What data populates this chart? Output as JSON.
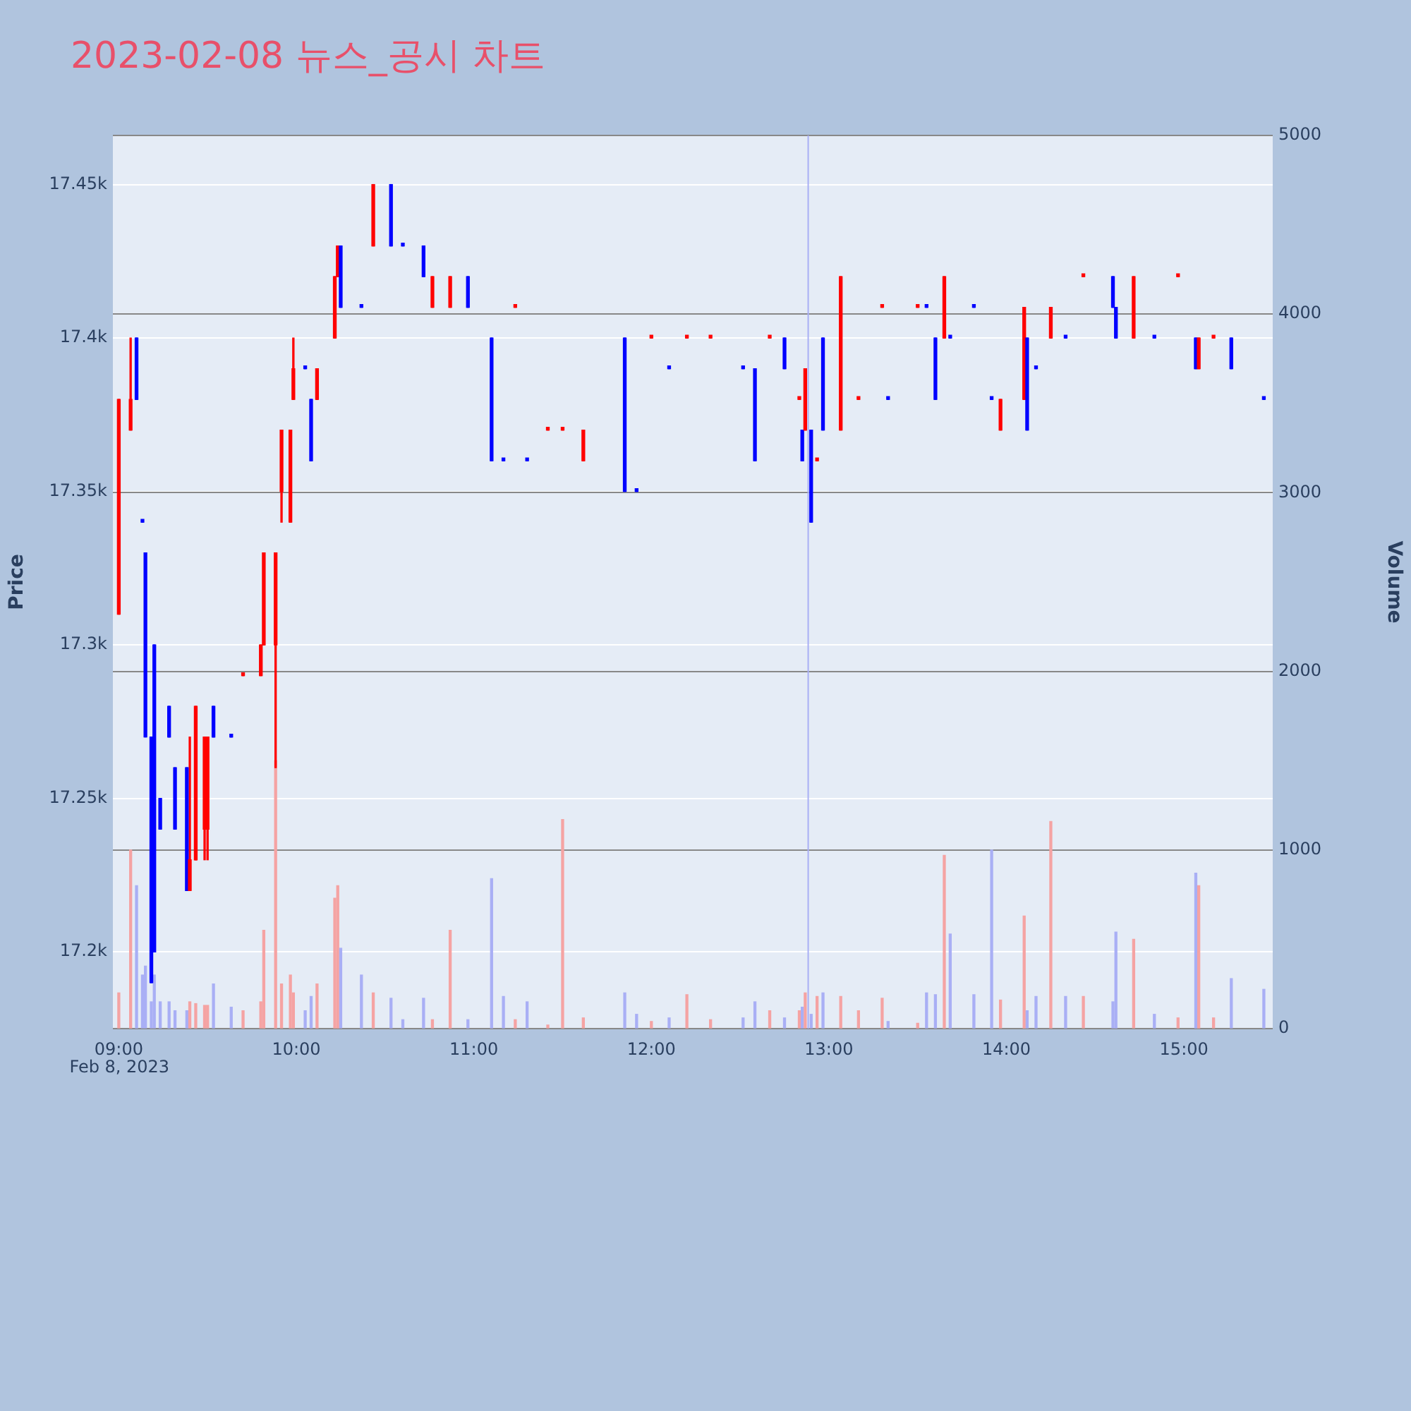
{
  "chart_data": {
    "type": "candlestick",
    "title": "2023-02-08 뉴스_공시 차트",
    "ylabel": "Price",
    "y2label": "Volume",
    "annotations": [
      "Feb 8, 2023"
    ],
    "x": [
      "2023-02-08T09:00",
      "2023-02-08T09:04",
      "2023-02-08T09:06",
      "2023-02-08T09:08",
      "2023-02-08T09:09",
      "2023-02-08T09:11",
      "2023-02-08T09:12",
      "2023-02-08T09:14",
      "2023-02-08T09:17",
      "2023-02-08T09:19",
      "2023-02-08T09:23",
      "2023-02-08T09:24",
      "2023-02-08T09:26",
      "2023-02-08T09:29",
      "2023-02-08T09:30",
      "2023-02-08T09:32",
      "2023-02-08T09:38",
      "2023-02-08T09:42",
      "2023-02-08T09:48",
      "2023-02-08T09:49",
      "2023-02-08T09:53",
      "2023-02-08T09:55",
      "2023-02-08T09:58",
      "2023-02-08T09:59",
      "2023-02-08T10:03",
      "2023-02-08T10:05",
      "2023-02-08T10:07",
      "2023-02-08T10:13",
      "2023-02-08T10:14",
      "2023-02-08T10:15",
      "2023-02-08T10:22",
      "2023-02-08T10:26",
      "2023-02-08T10:32",
      "2023-02-08T10:36",
      "2023-02-08T10:43",
      "2023-02-08T10:46",
      "2023-02-08T10:52",
      "2023-02-08T10:58",
      "2023-02-08T11:06",
      "2023-02-08T11:10",
      "2023-02-08T11:14",
      "2023-02-08T11:18",
      "2023-02-08T11:25",
      "2023-02-08T11:30",
      "2023-02-08T11:37",
      "2023-02-08T11:51",
      "2023-02-08T11:55",
      "2023-02-08T12:00",
      "2023-02-08T12:06",
      "2023-02-08T12:12",
      "2023-02-08T12:20",
      "2023-02-08T12:31",
      "2023-02-08T12:35",
      "2023-02-08T12:40",
      "2023-02-08T12:45",
      "2023-02-08T12:50",
      "2023-02-08T12:51",
      "2023-02-08T12:52",
      "2023-02-08T12:54",
      "2023-02-08T12:56",
      "2023-02-08T12:58",
      "2023-02-08T13:04",
      "2023-02-08T13:10",
      "2023-02-08T13:18",
      "2023-02-08T13:20",
      "2023-02-08T13:30",
      "2023-02-08T13:33",
      "2023-02-08T13:36",
      "2023-02-08T13:39",
      "2023-02-08T13:41",
      "2023-02-08T13:49",
      "2023-02-08T13:55",
      "2023-02-08T13:58",
      "2023-02-08T14:06",
      "2023-02-08T14:07",
      "2023-02-08T14:10",
      "2023-02-08T14:15",
      "2023-02-08T14:20",
      "2023-02-08T14:26",
      "2023-02-08T14:36",
      "2023-02-08T14:37",
      "2023-02-08T14:43",
      "2023-02-08T14:50",
      "2023-02-08T14:58",
      "2023-02-08T15:04",
      "2023-02-08T15:05",
      "2023-02-08T15:10",
      "2023-02-08T15:16",
      "2023-02-08T15:27"
    ],
    "series": [
      {
        "type": "candlestick",
        "ohlc": [
          [
            17310,
            17380,
            17310,
            17380
          ],
          [
            17370,
            17400,
            17370,
            17380
          ],
          [
            17400,
            17400,
            17380,
            17380
          ],
          [
            17340,
            17340,
            17340,
            17340
          ],
          [
            17330,
            17330,
            17270,
            17270
          ],
          [
            17270,
            17270,
            17190,
            17190
          ],
          [
            17300,
            17300,
            17200,
            17200
          ],
          [
            17250,
            17250,
            17240,
            17240
          ],
          [
            17280,
            17280,
            17270,
            17270
          ],
          [
            17260,
            17260,
            17240,
            17240
          ],
          [
            17260,
            17260,
            17220,
            17220
          ],
          [
            17220,
            17270,
            17220,
            17230
          ],
          [
            17230,
            17280,
            17230,
            17280
          ],
          [
            17240,
            17270,
            17230,
            17270
          ],
          [
            17240,
            17270,
            17230,
            17270
          ],
          [
            17280,
            17280,
            17270,
            17270
          ],
          [
            17270,
            17270,
            17270,
            17270
          ],
          [
            17290,
            17290,
            17290,
            17290
          ],
          [
            17290,
            17300,
            17290,
            17300
          ],
          [
            17300,
            17330,
            17300,
            17330
          ],
          [
            17300,
            17330,
            17260,
            17330
          ],
          [
            17350,
            17370,
            17340,
            17370
          ],
          [
            17340,
            17370,
            17340,
            17370
          ],
          [
            17380,
            17400,
            17380,
            17390
          ],
          [
            17390,
            17390,
            17390,
            17390
          ],
          [
            17380,
            17380,
            17360,
            17360
          ],
          [
            17380,
            17390,
            17380,
            17390
          ],
          [
            17400,
            17420,
            17400,
            17420
          ],
          [
            17420,
            17430,
            17420,
            17430
          ],
          [
            17430,
            17430,
            17410,
            17410
          ],
          [
            17410,
            17410,
            17410,
            17410
          ],
          [
            17430,
            17450,
            17430,
            17450
          ],
          [
            17450,
            17450,
            17430,
            17430
          ],
          [
            17430,
            17430,
            17430,
            17430
          ],
          [
            17430,
            17430,
            17420,
            17420
          ],
          [
            17410,
            17420,
            17410,
            17420
          ],
          [
            17410,
            17420,
            17410,
            17420
          ],
          [
            17420,
            17420,
            17410,
            17410
          ],
          [
            17400,
            17400,
            17360,
            17360
          ],
          [
            17360,
            17360,
            17360,
            17360
          ],
          [
            17410,
            17410,
            17410,
            17410
          ],
          [
            17360,
            17360,
            17360,
            17360
          ],
          [
            17370,
            17370,
            17370,
            17370
          ],
          [
            17370,
            17370,
            17370,
            17370
          ],
          [
            17360,
            17370,
            17360,
            17370
          ],
          [
            17400,
            17400,
            17350,
            17350
          ],
          [
            17350,
            17350,
            17350,
            17350
          ],
          [
            17400,
            17400,
            17400,
            17400
          ],
          [
            17390,
            17390,
            17390,
            17390
          ],
          [
            17400,
            17400,
            17400,
            17400
          ],
          [
            17400,
            17400,
            17400,
            17400
          ],
          [
            17390,
            17390,
            17390,
            17390
          ],
          [
            17390,
            17390,
            17360,
            17360
          ],
          [
            17400,
            17400,
            17400,
            17400
          ],
          [
            17400,
            17400,
            17390,
            17390
          ],
          [
            17380,
            17380,
            17380,
            17380
          ],
          [
            17370,
            17370,
            17360,
            17360
          ],
          [
            17370,
            17390,
            17370,
            17390
          ],
          [
            17370,
            17370,
            17340,
            17340
          ],
          [
            17360,
            17360,
            17360,
            17360
          ],
          [
            17400,
            17400,
            17370,
            17370
          ],
          [
            17370,
            17420,
            17370,
            17420
          ],
          [
            17380,
            17380,
            17380,
            17380
          ],
          [
            17410,
            17410,
            17410,
            17410
          ],
          [
            17380,
            17380,
            17380,
            17380
          ],
          [
            17410,
            17410,
            17410,
            17410
          ],
          [
            17410,
            17410,
            17410,
            17410
          ],
          [
            17400,
            17400,
            17380,
            17380
          ],
          [
            17400,
            17420,
            17400,
            17420
          ],
          [
            17400,
            17400,
            17400,
            17400
          ],
          [
            17410,
            17410,
            17410,
            17410
          ],
          [
            17380,
            17380,
            17380,
            17380
          ],
          [
            17370,
            17380,
            17370,
            17380
          ],
          [
            17380,
            17410,
            17380,
            17410
          ],
          [
            17400,
            17400,
            17370,
            17370
          ],
          [
            17390,
            17390,
            17390,
            17390
          ],
          [
            17400,
            17410,
            17400,
            17410
          ],
          [
            17400,
            17400,
            17400,
            17400
          ],
          [
            17420,
            17420,
            17420,
            17420
          ],
          [
            17420,
            17420,
            17410,
            17410
          ],
          [
            17410,
            17410,
            17400,
            17400
          ],
          [
            17400,
            17420,
            17400,
            17420
          ],
          [
            17400,
            17400,
            17400,
            17400
          ],
          [
            17420,
            17420,
            17420,
            17420
          ],
          [
            17400,
            17400,
            17390,
            17390
          ],
          [
            17390,
            17400,
            17390,
            17400
          ],
          [
            17400,
            17400,
            17400,
            17400
          ],
          [
            17400,
            17400,
            17390,
            17390
          ],
          [
            17380,
            17380,
            17380,
            17380
          ]
        ],
        "colors": [
          "#ff0000",
          "#ff0000",
          "#0000ff",
          "#0000ff",
          "#0000ff",
          "#0000ff",
          "#0000ff",
          "#0000ff",
          "#0000ff",
          "#0000ff",
          "#0000ff",
          "#ff0000",
          "#ff0000",
          "#ff0000",
          "#ff0000",
          "#0000ff",
          "#0000ff",
          "#ff0000",
          "#ff0000",
          "#ff0000",
          "#ff0000",
          "#ff0000",
          "#ff0000",
          "#ff0000",
          "#0000ff",
          "#0000ff",
          "#ff0000",
          "#ff0000",
          "#ff0000",
          "#0000ff",
          "#0000ff",
          "#ff0000",
          "#0000ff",
          "#0000ff",
          "#0000ff",
          "#ff0000",
          "#ff0000",
          "#0000ff",
          "#0000ff",
          "#0000ff",
          "#ff0000",
          "#0000ff",
          "#ff0000",
          "#ff0000",
          "#ff0000",
          "#0000ff",
          "#0000ff",
          "#ff0000",
          "#0000ff",
          "#ff0000",
          "#ff0000",
          "#0000ff",
          "#0000ff",
          "#ff0000",
          "#0000ff",
          "#ff0000",
          "#0000ff",
          "#ff0000",
          "#0000ff",
          "#ff0000",
          "#0000ff",
          "#ff0000",
          "#ff0000",
          "#ff0000",
          "#0000ff",
          "#ff0000",
          "#0000ff",
          "#0000ff",
          "#ff0000",
          "#0000ff",
          "#0000ff",
          "#0000ff",
          "#ff0000",
          "#ff0000",
          "#0000ff",
          "#0000ff",
          "#ff0000",
          "#0000ff",
          "#ff0000",
          "#0000ff",
          "#0000ff",
          "#ff0000",
          "#0000ff",
          "#ff0000",
          "#0000ff",
          "#ff0000",
          "#ff0000",
          "#0000ff",
          "#0000ff"
        ]
      },
      {
        "type": "bar",
        "axis": "y2",
        "values": [
          200,
          1000,
          800,
          300,
          350,
          150,
          300,
          150,
          150,
          100,
          100,
          150,
          140,
          130,
          130,
          250,
          120,
          100,
          150,
          550,
          1500,
          250,
          300,
          200,
          100,
          180,
          250,
          730,
          800,
          450,
          300,
          200,
          170,
          50,
          170,
          50,
          550,
          50,
          840,
          180,
          50,
          150,
          20,
          1170,
          60,
          200,
          80,
          40,
          60,
          190,
          50,
          60,
          150,
          100,
          60,
          100,
          120,
          200,
          80,
          180,
          200,
          180,
          100,
          170,
          40,
          30,
          200,
          190,
          970,
          530,
          190,
          1000,
          160,
          630,
          100,
          180,
          1160,
          180,
          180,
          150,
          540,
          500,
          80,
          60,
          870,
          800,
          60,
          280,
          220
        ],
        "colors": [
          "#f5a3a3",
          "#f5a3a3",
          "#a9aff5",
          "#a9aff5",
          "#a9aff5",
          "#a9aff5",
          "#a9aff5",
          "#a9aff5",
          "#a9aff5",
          "#a9aff5",
          "#a9aff5",
          "#f5a3a3",
          "#f5a3a3",
          "#f5a3a3",
          "#f5a3a3",
          "#a9aff5",
          "#a9aff5",
          "#f5a3a3",
          "#f5a3a3",
          "#f5a3a3",
          "#f5a3a3",
          "#f5a3a3",
          "#f5a3a3",
          "#f5a3a3",
          "#a9aff5",
          "#a9aff5",
          "#f5a3a3",
          "#f5a3a3",
          "#f5a3a3",
          "#a9aff5",
          "#a9aff5",
          "#f5a3a3",
          "#a9aff5",
          "#a9aff5",
          "#a9aff5",
          "#f5a3a3",
          "#f5a3a3",
          "#a9aff5",
          "#a9aff5",
          "#a9aff5",
          "#f5a3a3",
          "#a9aff5",
          "#f5a3a3",
          "#f5a3a3",
          "#f5a3a3",
          "#a9aff5",
          "#a9aff5",
          "#f5a3a3",
          "#a9aff5",
          "#f5a3a3",
          "#f5a3a3",
          "#a9aff5",
          "#a9aff5",
          "#f5a3a3",
          "#a9aff5",
          "#f5a3a3",
          "#a9aff5",
          "#f5a3a3",
          "#a9aff5",
          "#f5a3a3",
          "#a9aff5",
          "#f5a3a3",
          "#f5a3a3",
          "#f5a3a3",
          "#a9aff5",
          "#f5a3a3",
          "#a9aff5",
          "#a9aff5",
          "#f5a3a3",
          "#a9aff5",
          "#a9aff5",
          "#a9aff5",
          "#f5a3a3",
          "#f5a3a3",
          "#a9aff5",
          "#a9aff5",
          "#f5a3a3",
          "#a9aff5",
          "#f5a3a3",
          "#a9aff5",
          "#a9aff5",
          "#f5a3a3",
          "#a9aff5",
          "#f5a3a3",
          "#a9aff5",
          "#f5a3a3",
          "#f5a3a3",
          "#a9aff5",
          "#a9aff5"
        ]
      }
    ],
    "xlim": [
      "2023-02-08T08:58",
      "2023-02-08T15:30"
    ],
    "xticks": [
      {
        "value": "2023-02-08T09:00",
        "label": "09:00"
      },
      {
        "value": "2023-02-08T10:00",
        "label": "10:00"
      },
      {
        "value": "2023-02-08T11:00",
        "label": "11:00"
      },
      {
        "value": "2023-02-08T12:00",
        "label": "12:00"
      },
      {
        "value": "2023-02-08T13:00",
        "label": "13:00"
      },
      {
        "value": "2023-02-08T14:00",
        "label": "14:00"
      },
      {
        "value": "2023-02-08T15:00",
        "label": "15:00"
      }
    ],
    "ylim": [
      17175,
      17466
    ],
    "yticks": [
      {
        "value": 17200,
        "label": "17.2k"
      },
      {
        "value": 17250,
        "label": "17.25k"
      },
      {
        "value": 17300,
        "label": "17.3k"
      },
      {
        "value": 17350,
        "label": "17.35k"
      },
      {
        "value": 17400,
        "label": "17.4k"
      },
      {
        "value": 17450,
        "label": "17.45k"
      }
    ],
    "y2lim": [
      0,
      5000
    ],
    "y2ticks": [
      0,
      1000,
      2000,
      3000,
      4000,
      5000
    ],
    "ref_lines": [
      {
        "axis": "x",
        "value": "2023-02-08T12:53",
        "color": "#a9aff5"
      }
    ],
    "grid": "y",
    "legend": false
  }
}
